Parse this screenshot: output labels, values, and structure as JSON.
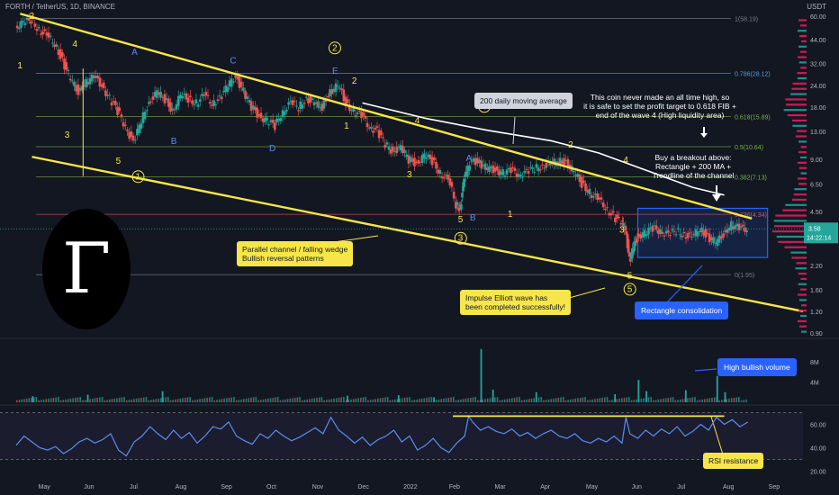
{
  "header": {
    "symbol": "FORTH / TetherUS, 1D, BINANCE",
    "currency": "USDT"
  },
  "price_tag": {
    "price": "3.58",
    "countdown": "14:22:14"
  },
  "logo_glyph": "Γ",
  "colors": {
    "bg": "#131722",
    "up": "#26a69a",
    "down": "#ef5350",
    "trend": "#f7e64a",
    "ma": "#ffffff",
    "rsi": "#5b8def",
    "fib": "#3fb950"
  },
  "annotations": {
    "channel": [
      "Parallel channel / falling wedge",
      "Bullish reversal patterns"
    ],
    "ma": "200 daily moving average",
    "ath": [
      "This coin never made an all time high, so",
      "it is safe to set the profit target to 0.618 FIB +",
      "end of the wave 4 (High liquidity area)"
    ],
    "breakout": [
      "Buy a breakout above:",
      "Rectangle + 200 MA +",
      "Trendline of the channel"
    ],
    "impulse": [
      "Impulse Elliott wave has",
      "been completed successfully!"
    ],
    "rectangle": "Rectangle consolidation",
    "volume": "High bullish volume",
    "rsi": "RSI resistance"
  },
  "chart_data": [
    {
      "type": "candlestick",
      "scale": "log",
      "ylim": [
        0.9,
        60.0
      ],
      "price_ticks": [
        "60.00",
        "44.00",
        "32.00",
        "24.00",
        "18.00",
        "13.00",
        "9.00",
        "6.50",
        "4.50",
        "2.20",
        "1.60",
        "1.20",
        "0.90"
      ],
      "price_tick_values": [
        60,
        44,
        32,
        24,
        18,
        13,
        9,
        6.5,
        4.5,
        2.2,
        1.6,
        1.2,
        0.9
      ],
      "x_ticks": [
        "May",
        "Jun",
        "Jul",
        "Aug",
        "Sep",
        "Oct",
        "Nov",
        "Dec",
        "2022",
        "Feb",
        "Mar",
        "Apr",
        "May",
        "Jun",
        "Jul",
        "Aug",
        "Sep"
      ],
      "fib_levels": [
        {
          "label": "1(58.19)",
          "value": 58.19
        },
        {
          "label": "0.786(28.12)",
          "value": 28.12
        },
        {
          "label": "0.618(15.89)",
          "value": 15.89
        },
        {
          "label": "0.5(10.64)",
          "value": 10.64
        },
        {
          "label": "0.382(7.13)",
          "value": 7.13
        },
        {
          "label": "0.236(4.34)",
          "value": 4.34
        },
        {
          "label": "0(1.95)",
          "value": 1.95
        }
      ],
      "waves": [
        {
          "label": "2",
          "t": 0.02,
          "v": 58
        },
        {
          "label": "1",
          "t": 0.005,
          "v": 30
        },
        {
          "label": "4",
          "t": 0.075,
          "v": 40
        },
        {
          "label": "3",
          "t": 0.065,
          "v": 12
        },
        {
          "label": "A",
          "t": 0.15,
          "v": 36
        },
        {
          "label": "5",
          "t": 0.13,
          "v": 8.5
        },
        {
          "label": "B",
          "t": 0.2,
          "v": 11
        },
        {
          "label": "C",
          "t": 0.275,
          "v": 32
        },
        {
          "label": "D",
          "t": 0.325,
          "v": 10
        },
        {
          "label": "E",
          "t": 0.405,
          "v": 28
        },
        {
          "label": "2",
          "t": 0.405,
          "v": 38,
          "circled": true
        },
        {
          "label": "2",
          "t": 0.43,
          "v": 24.5
        },
        {
          "label": "1",
          "t": 0.42,
          "v": 13.5
        },
        {
          "label": "4",
          "t": 0.51,
          "v": 14.5
        },
        {
          "label": "3",
          "t": 0.5,
          "v": 7.1
        },
        {
          "label": "4",
          "t": 0.595,
          "v": 17.5,
          "circled": true
        },
        {
          "label": "A",
          "t": 0.575,
          "v": 8.8
        },
        {
          "label": "5",
          "t": 0.565,
          "v": 3.9
        },
        {
          "label": "B",
          "t": 0.58,
          "v": 4.0
        },
        {
          "label": "1",
          "t": 0.628,
          "v": 4.2
        },
        {
          "label": "2",
          "t": 0.705,
          "v": 10.5
        },
        {
          "label": "4",
          "t": 0.775,
          "v": 8.6
        },
        {
          "label": "3",
          "t": 0.77,
          "v": 3.4
        },
        {
          "label": "5",
          "t": 0.78,
          "v": 1.85
        },
        {
          "label": "5",
          "t": 0.78,
          "v": 1.55,
          "circled": true
        },
        {
          "label": "1",
          "t": 0.155,
          "v": 6.9,
          "circled": true
        },
        {
          "label": "3",
          "t": 0.565,
          "v": 3.05,
          "circled": true
        }
      ],
      "series": [
        {
          "name": "",
          "points": [
            [
              0.0,
              52
            ],
            [
              0.01,
              55
            ],
            [
              0.02,
              57
            ],
            [
              0.03,
              50
            ],
            [
              0.04,
              46
            ],
            [
              0.05,
              42
            ],
            [
              0.06,
              33
            ],
            [
              0.07,
              26
            ],
            [
              0.08,
              22
            ],
            [
              0.09,
              25
            ],
            [
              0.1,
              27
            ],
            [
              0.11,
              24
            ],
            [
              0.12,
              20
            ],
            [
              0.13,
              17
            ],
            [
              0.14,
              14
            ],
            [
              0.15,
              11
            ],
            [
              0.16,
              15
            ],
            [
              0.17,
              19
            ],
            [
              0.18,
              22
            ],
            [
              0.19,
              20
            ],
            [
              0.2,
              17
            ],
            [
              0.21,
              21
            ],
            [
              0.22,
              20
            ],
            [
              0.23,
              19
            ],
            [
              0.24,
              21
            ],
            [
              0.25,
              19
            ],
            [
              0.26,
              20
            ],
            [
              0.27,
              24
            ],
            [
              0.28,
              27
            ],
            [
              0.29,
              22
            ],
            [
              0.3,
              18
            ],
            [
              0.31,
              16
            ],
            [
              0.32,
              15
            ],
            [
              0.33,
              14
            ],
            [
              0.34,
              17
            ],
            [
              0.35,
              19
            ],
            [
              0.36,
              18
            ],
            [
              0.37,
              20
            ],
            [
              0.38,
              19
            ],
            [
              0.39,
              18
            ],
            [
              0.4,
              22
            ],
            [
              0.41,
              24
            ],
            [
              0.42,
              19
            ],
            [
              0.43,
              17
            ],
            [
              0.44,
              16
            ],
            [
              0.45,
              14
            ],
            [
              0.46,
              13
            ],
            [
              0.47,
              11
            ],
            [
              0.48,
              10
            ],
            [
              0.49,
              10.5
            ],
            [
              0.5,
              9
            ],
            [
              0.51,
              8.5
            ],
            [
              0.52,
              9.5
            ],
            [
              0.53,
              8.8
            ],
            [
              0.54,
              7.5
            ],
            [
              0.55,
              6.8
            ],
            [
              0.56,
              5.0
            ],
            [
              0.565,
              4.6
            ],
            [
              0.57,
              7
            ],
            [
              0.58,
              9
            ],
            [
              0.59,
              8.5
            ],
            [
              0.6,
              8.0
            ],
            [
              0.61,
              7.8
            ],
            [
              0.62,
              7.5
            ],
            [
              0.63,
              7.8
            ],
            [
              0.64,
              7.4
            ],
            [
              0.65,
              7.6
            ],
            [
              0.66,
              8
            ],
            [
              0.67,
              8.2
            ],
            [
              0.68,
              8.5
            ],
            [
              0.69,
              8.8
            ],
            [
              0.7,
              8.6
            ],
            [
              0.71,
              7.6
            ],
            [
              0.72,
              6.5
            ],
            [
              0.73,
              5.8
            ],
            [
              0.74,
              5.3
            ],
            [
              0.75,
              4.8
            ],
            [
              0.76,
              4.2
            ],
            [
              0.77,
              3.9
            ],
            [
              0.775,
              3.6
            ],
            [
              0.78,
              2.3
            ],
            [
              0.785,
              2.8
            ],
            [
              0.79,
              3.2
            ],
            [
              0.8,
              3.4
            ],
            [
              0.81,
              3.6
            ],
            [
              0.82,
              3.5
            ],
            [
              0.83,
              3.3
            ],
            [
              0.84,
              3.5
            ],
            [
              0.85,
              3.3
            ],
            [
              0.86,
              3.2
            ],
            [
              0.87,
              3.6
            ],
            [
              0.88,
              3.2
            ],
            [
              0.89,
              3.0
            ],
            [
              0.9,
              3.3
            ],
            [
              0.91,
              3.8
            ],
            [
              0.92,
              3.6
            ],
            [
              0.93,
              3.58
            ]
          ]
        }
      ],
      "ma200": [
        [
          0.44,
          19
        ],
        [
          0.52,
          15.5
        ],
        [
          0.6,
          13.2
        ],
        [
          0.68,
          11.5
        ],
        [
          0.74,
          9.8
        ],
        [
          0.8,
          7.8
        ],
        [
          0.86,
          6.2
        ],
        [
          0.9,
          5.6
        ]
      ],
      "rectangle": {
        "t0": 0.79,
        "t1": 0.955,
        "v0": 2.45,
        "v1": 4.7
      }
    },
    {
      "type": "bar",
      "name": "volume",
      "y_ticks": [
        "8M",
        "4M"
      ],
      "y_tick_values": [
        8,
        4
      ],
      "ylim": [
        0,
        11
      ],
      "spikes": [
        [
          0.02,
          1.2
        ],
        [
          0.09,
          1.5
        ],
        [
          0.185,
          2.2
        ],
        [
          0.42,
          1.3
        ],
        [
          0.485,
          1.4
        ],
        [
          0.53,
          1.0
        ],
        [
          0.59,
          10.5
        ],
        [
          0.605,
          2.5
        ],
        [
          0.66,
          2.0
        ],
        [
          0.76,
          1.6
        ],
        [
          0.79,
          4.4
        ],
        [
          0.8,
          2.2
        ],
        [
          0.85,
          2.4
        ],
        [
          0.89,
          5.2
        ],
        [
          0.9,
          2.0
        ]
      ]
    },
    {
      "type": "line",
      "name": "rsi",
      "y_ticks": [
        "60.00",
        "40.00",
        "20.00"
      ],
      "y_tick_values": [
        60,
        40,
        20
      ],
      "ylim": [
        15,
        75
      ],
      "resistance": 67,
      "bands": [
        70,
        30
      ],
      "values": [
        [
          0.0,
          42
        ],
        [
          0.01,
          50
        ],
        [
          0.02,
          45
        ],
        [
          0.03,
          40
        ],
        [
          0.04,
          38
        ],
        [
          0.05,
          41
        ],
        [
          0.06,
          35
        ],
        [
          0.07,
          39
        ],
        [
          0.08,
          45
        ],
        [
          0.09,
          48
        ],
        [
          0.1,
          44
        ],
        [
          0.11,
          47
        ],
        [
          0.12,
          52
        ],
        [
          0.13,
          38
        ],
        [
          0.14,
          33
        ],
        [
          0.15,
          45
        ],
        [
          0.16,
          50
        ],
        [
          0.17,
          58
        ],
        [
          0.18,
          52
        ],
        [
          0.19,
          47
        ],
        [
          0.2,
          55
        ],
        [
          0.21,
          48
        ],
        [
          0.22,
          53
        ],
        [
          0.23,
          44
        ],
        [
          0.24,
          50
        ],
        [
          0.25,
          58
        ],
        [
          0.26,
          56
        ],
        [
          0.27,
          62
        ],
        [
          0.28,
          50
        ],
        [
          0.29,
          46
        ],
        [
          0.3,
          43
        ],
        [
          0.31,
          52
        ],
        [
          0.32,
          48
        ],
        [
          0.33,
          55
        ],
        [
          0.34,
          50
        ],
        [
          0.35,
          46
        ],
        [
          0.36,
          49
        ],
        [
          0.37,
          53
        ],
        [
          0.38,
          57
        ],
        [
          0.39,
          52
        ],
        [
          0.4,
          66
        ],
        [
          0.41,
          55
        ],
        [
          0.42,
          50
        ],
        [
          0.43,
          44
        ],
        [
          0.44,
          49
        ],
        [
          0.45,
          42
        ],
        [
          0.46,
          47
        ],
        [
          0.47,
          50
        ],
        [
          0.48,
          55
        ],
        [
          0.49,
          45
        ],
        [
          0.5,
          50
        ],
        [
          0.51,
          38
        ],
        [
          0.52,
          42
        ],
        [
          0.53,
          48
        ],
        [
          0.54,
          40
        ],
        [
          0.55,
          36
        ],
        [
          0.56,
          44
        ],
        [
          0.57,
          50
        ],
        [
          0.575,
          67
        ],
        [
          0.58,
          62
        ],
        [
          0.59,
          55
        ],
        [
          0.6,
          58
        ],
        [
          0.61,
          54
        ],
        [
          0.62,
          52
        ],
        [
          0.63,
          56
        ],
        [
          0.64,
          50
        ],
        [
          0.65,
          53
        ],
        [
          0.66,
          48
        ],
        [
          0.67,
          52
        ],
        [
          0.68,
          55
        ],
        [
          0.69,
          50
        ],
        [
          0.7,
          48
        ],
        [
          0.71,
          52
        ],
        [
          0.72,
          46
        ],
        [
          0.73,
          44
        ],
        [
          0.74,
          48
        ],
        [
          0.75,
          45
        ],
        [
          0.76,
          50
        ],
        [
          0.77,
          44
        ],
        [
          0.775,
          66
        ],
        [
          0.78,
          52
        ],
        [
          0.79,
          48
        ],
        [
          0.8,
          55
        ],
        [
          0.81,
          50
        ],
        [
          0.82,
          56
        ],
        [
          0.83,
          52
        ],
        [
          0.84,
          58
        ],
        [
          0.85,
          50
        ],
        [
          0.86,
          54
        ],
        [
          0.87,
          60
        ],
        [
          0.88,
          55
        ],
        [
          0.89,
          66
        ],
        [
          0.9,
          60
        ],
        [
          0.91,
          64
        ],
        [
          0.92,
          58
        ],
        [
          0.93,
          62
        ]
      ]
    }
  ]
}
